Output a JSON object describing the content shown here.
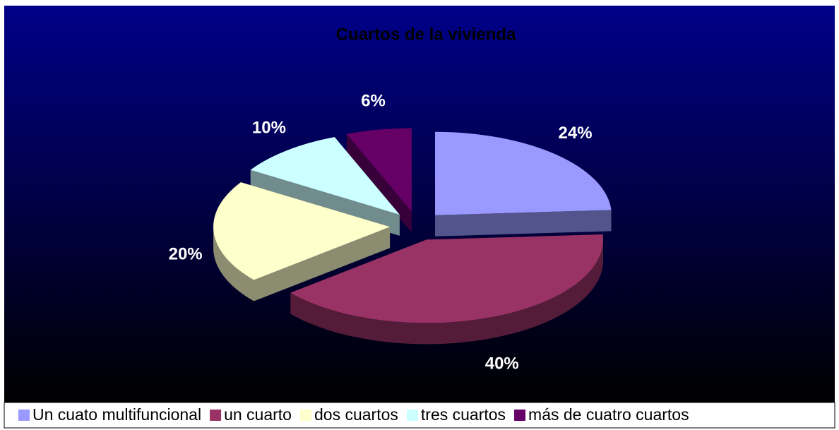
{
  "chart_data": {
    "type": "pie",
    "title": "Cuartos de la vivienda",
    "categories": [
      "Un cuato multifuncional",
      "un cuarto",
      "dos cuartos",
      "tres cuartos",
      "más de cuatro cuartos"
    ],
    "values": [
      24,
      40,
      20,
      10,
      6
    ],
    "value_labels": [
      "24%",
      "40%",
      "20%",
      "10%",
      "6%"
    ],
    "colors": [
      "#9999ff",
      "#993366",
      "#ffffcc",
      "#ccffff",
      "#660066"
    ],
    "legend": "bottom"
  }
}
